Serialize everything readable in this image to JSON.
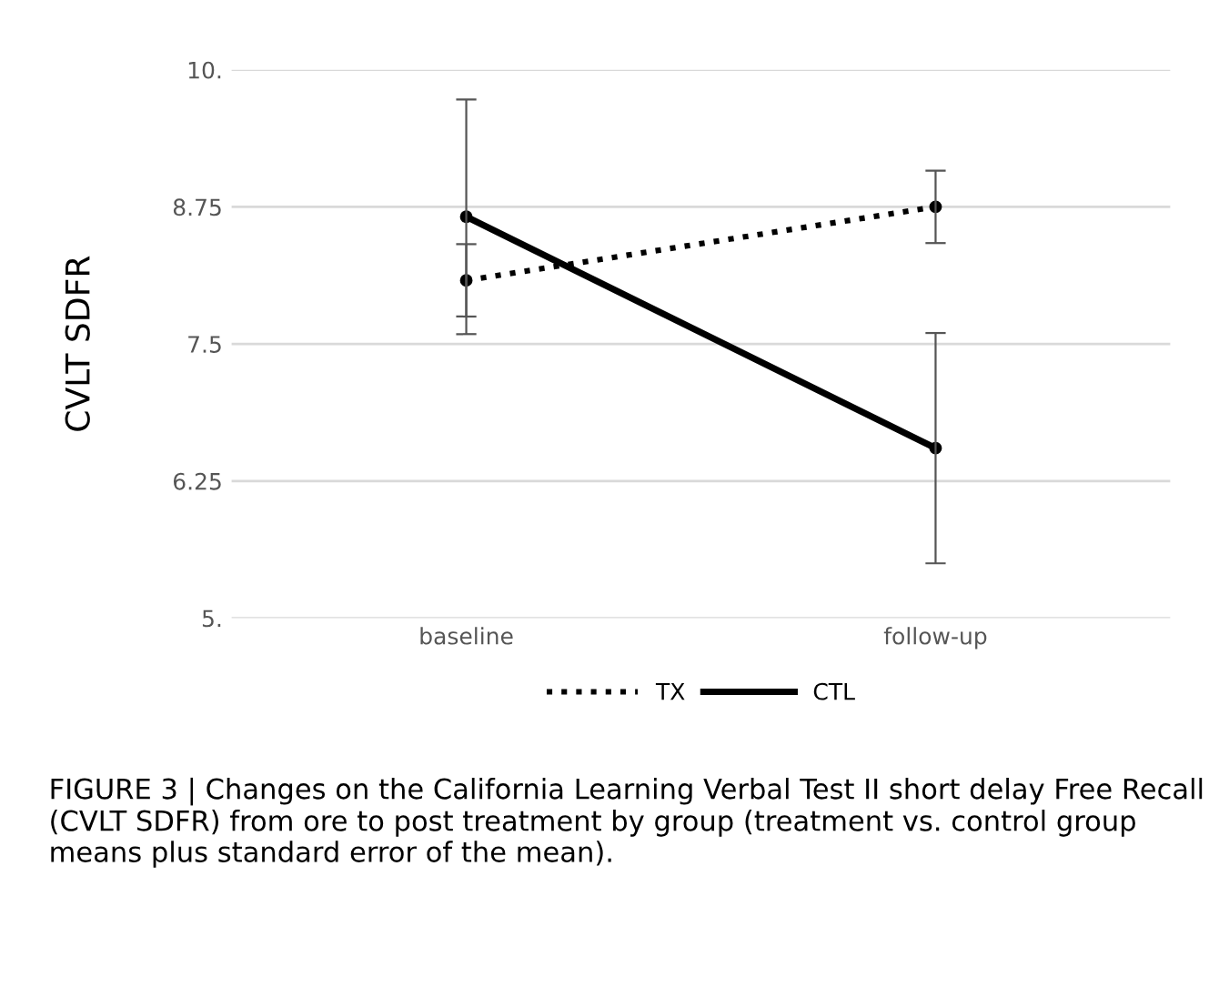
{
  "chart_data": {
    "type": "line",
    "ylabel": "CVLT SDFR",
    "categories": [
      "baseline",
      "follow-up"
    ],
    "series": [
      {
        "name": "TX",
        "color": "#000000",
        "values": [
          8.08,
          8.75
        ],
        "errors": [
          0.33,
          0.33
        ],
        "line_style": "dotted"
      },
      {
        "name": "CTL",
        "color": "#000000",
        "values": [
          8.66,
          6.55
        ],
        "errors": [
          1.07,
          1.05
        ],
        "line_style": "solid"
      }
    ],
    "ylim": [
      5,
      10
    ],
    "yticks": [
      {
        "value": 5,
        "label": "5."
      },
      {
        "value": 6.25,
        "label": "6.25"
      },
      {
        "value": 7.5,
        "label": "7.5"
      },
      {
        "value": 8.75,
        "label": "8.75"
      },
      {
        "value": 10,
        "label": "10."
      }
    ],
    "grid": "y",
    "legend": "bottom",
    "marker": "circle",
    "annotations": [
      "FIGURE 3 | Changes on the California Learning Verbal Test II short delay Free Recall (CVLT SDFR) from ore to post treatment by group (treatment vs. control group means plus standard error of the mean)."
    ]
  }
}
